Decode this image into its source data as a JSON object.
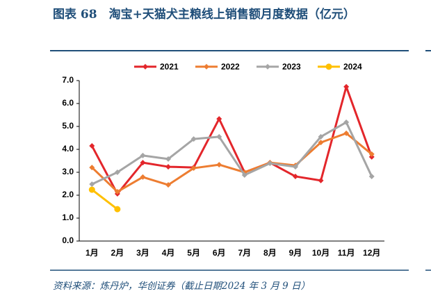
{
  "chart_data": {
    "type": "line",
    "title": "图表 68　淘宝+天猫犬主粮线上销售额月度数据（亿元）",
    "source": "资料来源：炼丹炉，华创证券（截止日期2024 年 3 月 9 日）",
    "categories": [
      "1月",
      "2月",
      "3月",
      "4月",
      "5月",
      "6月",
      "7月",
      "8月",
      "9月",
      "10月",
      "11月",
      "12月"
    ],
    "series": [
      {
        "name": "2021",
        "color": "#e3262b",
        "marker": "diamond",
        "values": [
          4.15,
          2.06,
          3.42,
          3.24,
          3.21,
          5.33,
          3.0,
          3.42,
          2.82,
          2.64,
          6.73,
          3.67
        ]
      },
      {
        "name": "2022",
        "color": "#ed7d31",
        "marker": "diamond",
        "values": [
          3.21,
          2.15,
          2.79,
          2.45,
          3.18,
          3.33,
          3.0,
          3.42,
          3.3,
          4.3,
          4.7,
          3.79
        ]
      },
      {
        "name": "2023",
        "color": "#a5a5a5",
        "marker": "diamond",
        "values": [
          2.48,
          3.0,
          3.73,
          3.58,
          4.45,
          4.55,
          2.88,
          3.39,
          3.24,
          4.55,
          5.18,
          2.82
        ]
      },
      {
        "name": "2024",
        "color": "#ffc000",
        "marker": "circle",
        "values": [
          2.24,
          1.39,
          null,
          null,
          null,
          null,
          null,
          null,
          null,
          null,
          null,
          null
        ]
      }
    ],
    "ylim": [
      0,
      7
    ],
    "yticks": [
      {
        "value": 0,
        "label": "0.0"
      },
      {
        "value": 1,
        "label": "1.0"
      },
      {
        "value": 2,
        "label": "2.0"
      },
      {
        "value": 3,
        "label": "3.0"
      },
      {
        "value": 4,
        "label": "4.0"
      },
      {
        "value": 5,
        "label": "5.0"
      },
      {
        "value": 6,
        "label": "6.0"
      },
      {
        "value": 7,
        "label": "7.0"
      }
    ],
    "legend": "top"
  }
}
